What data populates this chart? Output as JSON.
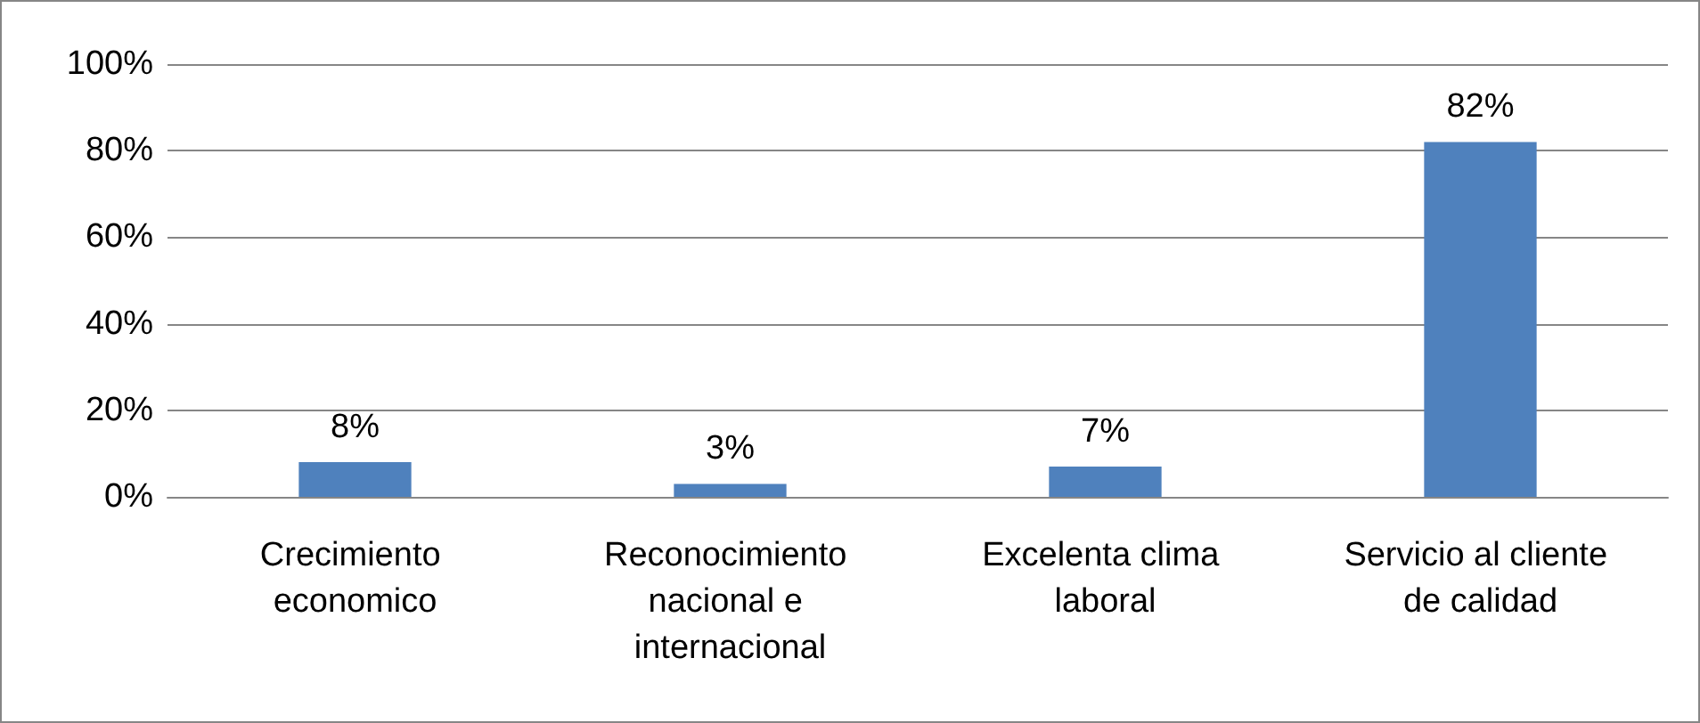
{
  "chart_data": {
    "type": "bar",
    "categories": [
      "Crecimiento economico",
      "Reconocimiento nacional e internacional",
      "Excelenta clima laboral",
      "Servicio al cliente de calidad"
    ],
    "values": [
      8,
      3,
      7,
      82
    ],
    "value_labels": [
      "8%",
      "3%",
      "7%",
      "82%"
    ],
    "color": "#4f81bd",
    "ylim": [
      0,
      100
    ],
    "yticks": [
      {
        "value": 0,
        "label": "0%"
      },
      {
        "value": 20,
        "label": "20%"
      },
      {
        "value": 40,
        "label": "40%"
      },
      {
        "value": 60,
        "label": "60%"
      },
      {
        "value": 80,
        "label": "80%"
      },
      {
        "value": 100,
        "label": "100%"
      }
    ],
    "grid": true
  }
}
